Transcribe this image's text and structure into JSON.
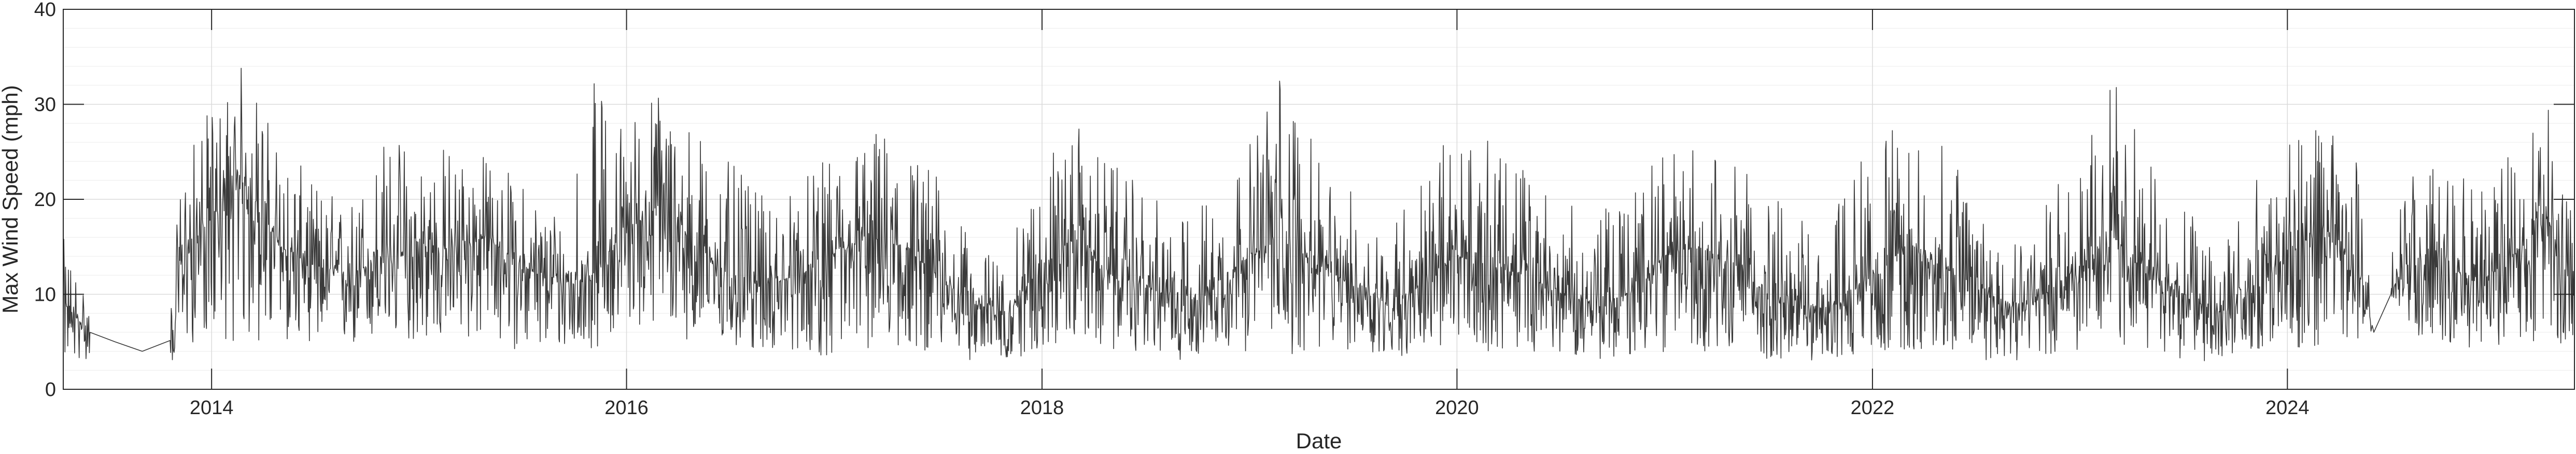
{
  "chart_data": {
    "type": "line",
    "title": "",
    "xlabel": "Date",
    "ylabel": "Max Wind Speed (mph)",
    "xlim": [
      "2013-04-15",
      "2025-05-20"
    ],
    "ylim": [
      0,
      40
    ],
    "x_ticks": [
      "2014-01-01",
      "2016-01-01",
      "2018-01-01",
      "2020-01-01",
      "2022-01-01",
      "2024-01-01"
    ],
    "x_tick_labels": [
      "2014",
      "2016",
      "2018",
      "2020",
      "2022",
      "2024"
    ],
    "y_ticks": [
      0,
      10,
      20,
      30,
      40
    ],
    "y_tick_labels": [
      "0",
      "10",
      "20",
      "30",
      "40"
    ],
    "grid": true,
    "minor_grid_y": true,
    "box": true,
    "series": [
      {
        "color": "#3a3a3a",
        "x": [
          "2013-04-15",
          "2013-06-01",
          "2013-07-15",
          "2013-09-01",
          "2013-10-20",
          "2013-11-10",
          "2014-01-01",
          "2014-03-01",
          "2014-05-01",
          "2014-07-01",
          "2014-09-01",
          "2014-11-01",
          "2015-01-01",
          "2015-03-01",
          "2015-05-01",
          "2015-07-01",
          "2015-09-01",
          "2015-11-01",
          "2016-01-01",
          "2016-03-01",
          "2016-05-01",
          "2016-07-01",
          "2016-09-01",
          "2016-11-01",
          "2017-01-01",
          "2017-03-01",
          "2017-05-01",
          "2017-07-01",
          "2017-09-01",
          "2017-11-01",
          "2018-01-01",
          "2018-03-01",
          "2018-05-01",
          "2018-07-01",
          "2018-09-01",
          "2018-11-01",
          "2019-01-01",
          "2019-03-01",
          "2019-05-01",
          "2019-07-01",
          "2019-09-01",
          "2019-11-01",
          "2020-01-01",
          "2020-03-01",
          "2020-05-01",
          "2020-07-01",
          "2020-09-01",
          "2020-11-01",
          "2021-01-01",
          "2021-03-01",
          "2021-05-01",
          "2021-07-01",
          "2021-09-01",
          "2021-11-01",
          "2022-01-01",
          "2022-03-01",
          "2022-05-01",
          "2022-07-01",
          "2022-09-01",
          "2022-11-01",
          "2023-01-01",
          "2023-03-01",
          "2023-05-01",
          "2023-07-01",
          "2023-09-01",
          "2023-11-01",
          "2024-01-01",
          "2024-03-01",
          "2024-05-10",
          "2024-06-01",
          "2024-07-01",
          "2024-08-01",
          "2024-10-01",
          "2024-12-01",
          "2025-02-01",
          "2025-04-01",
          "2025-05-20"
        ],
        "values": [
          9,
          6,
          5,
          4,
          4.5,
          14,
          18,
          22,
          15,
          13,
          12,
          14,
          14,
          15,
          16,
          13,
          11,
          12,
          17,
          19,
          15,
          12,
          11,
          12,
          14,
          16,
          15,
          12,
          9,
          8,
          13,
          16,
          12,
          11,
          9,
          11,
          14,
          16,
          13,
          11,
          9,
          11,
          14,
          13,
          12,
          10,
          9,
          10,
          14,
          15,
          13,
          10,
          8,
          9,
          12,
          15,
          13,
          11,
          9,
          10,
          13,
          16,
          12,
          10,
          8,
          10,
          14,
          17,
          12,
          6,
          10,
          14,
          13,
          11,
          14,
          18,
          12
        ],
        "values_range": [
          [
            3,
            16
          ],
          [
            3,
            10
          ],
          [
            2.5,
            9
          ],
          [
            2.5,
            8
          ],
          [
            2.5,
            8.5
          ],
          [
            4,
            24
          ],
          [
            6,
            30
          ],
          [
            4,
            35
          ],
          [
            5,
            26
          ],
          [
            5,
            22
          ],
          [
            4,
            20
          ],
          [
            5,
            27
          ],
          [
            5,
            27
          ],
          [
            5,
            26
          ],
          [
            5,
            25
          ],
          [
            4,
            22
          ],
          [
            4,
            20
          ],
          [
            4,
            33
          ],
          [
            7,
            29
          ],
          [
            6,
            33
          ],
          [
            5,
            28
          ],
          [
            4,
            24
          ],
          [
            4,
            20
          ],
          [
            4,
            22
          ],
          [
            3,
            25
          ],
          [
            4,
            28
          ],
          [
            4,
            27
          ],
          [
            4,
            23
          ],
          [
            3,
            15
          ],
          [
            3,
            14
          ],
          [
            4,
            25
          ],
          [
            5,
            28
          ],
          [
            4,
            24
          ],
          [
            4,
            21
          ],
          [
            3,
            18
          ],
          [
            4,
            22
          ],
          [
            4,
            26
          ],
          [
            3,
            36
          ],
          [
            4,
            24
          ],
          [
            4,
            21
          ],
          [
            3,
            18
          ],
          [
            4,
            23
          ],
          [
            4,
            28
          ],
          [
            4,
            26
          ],
          [
            4,
            24
          ],
          [
            4,
            20
          ],
          [
            3,
            18
          ],
          [
            3,
            22
          ],
          [
            4,
            25
          ],
          [
            4,
            26
          ],
          [
            4,
            24
          ],
          [
            3,
            21
          ],
          [
            3,
            18
          ],
          [
            3,
            20
          ],
          [
            4,
            28
          ],
          [
            4,
            27
          ],
          [
            4,
            26
          ],
          [
            3,
            22
          ],
          [
            3,
            18
          ],
          [
            3,
            20
          ],
          [
            4,
            25
          ],
          [
            4,
            34
          ],
          [
            4,
            24
          ],
          [
            3,
            20
          ],
          [
            3,
            18
          ],
          [
            4,
            22
          ],
          [
            4,
            26
          ],
          [
            4,
            28
          ],
          [
            4,
            24
          ],
          [
            6,
            12
          ],
          [
            10,
            14
          ],
          [
            6,
            24
          ],
          [
            5,
            24
          ],
          [
            4,
            21
          ],
          [
            5,
            25
          ],
          [
            5,
            32
          ],
          [
            4,
            22
          ]
        ]
      }
    ]
  }
}
